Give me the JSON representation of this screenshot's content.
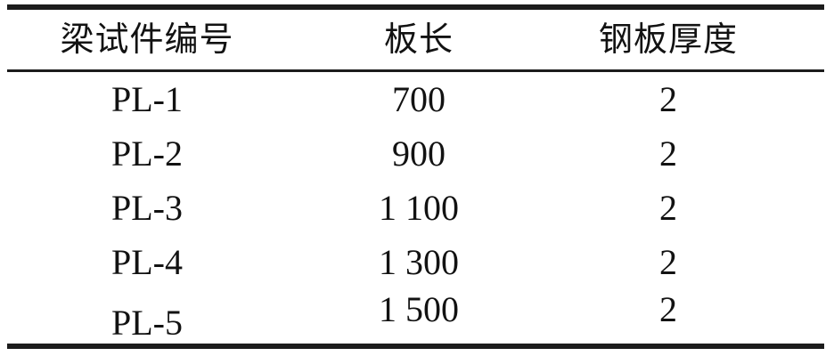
{
  "table": {
    "headers": [
      "梁试件编号",
      "板长",
      "钢板厚度"
    ],
    "rows": [
      [
        "PL-1",
        "700",
        "2"
      ],
      [
        "PL-2",
        "900",
        "2"
      ],
      [
        "PL-3",
        "1 100",
        "2"
      ],
      [
        "PL-4",
        "1 300",
        "2"
      ],
      [
        "PL-5",
        "1 500",
        "2"
      ]
    ]
  },
  "colors": {
    "background": "#ffffff",
    "text": "#121212",
    "rule": "#1c1c1c"
  }
}
